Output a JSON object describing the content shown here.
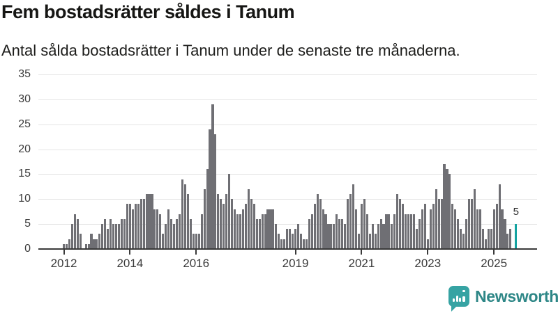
{
  "header": {
    "title": "Fem bostadsrätter såldes i Tanum",
    "subtitle": "Antal sålda bostadsrätter i Tanum under de senaste tre månaderna."
  },
  "chart_data": {
    "type": "bar",
    "title": "Fem bostadsrätter såldes i Tanum",
    "subtitle": "Antal sålda bostadsrätter i Tanum under de senaste tre månaderna.",
    "x_unit": "month",
    "x_start_year": 2012,
    "x_tick_labels": [
      "2012",
      "2014",
      "2016",
      "2019",
      "2021",
      "2023",
      "2025"
    ],
    "x_tick_month_index": [
      0,
      24,
      48,
      84,
      108,
      132,
      156
    ],
    "y_ticks": [
      0,
      5,
      10,
      15,
      20,
      25,
      30,
      35
    ],
    "ylim": [
      0,
      35
    ],
    "grid": true,
    "legend": "none",
    "values": [
      1,
      1,
      2,
      5,
      7,
      6,
      3,
      0,
      1,
      1,
      3,
      2,
      2,
      3,
      5,
      6,
      4,
      6,
      5,
      5,
      5,
      6,
      6,
      9,
      9,
      8,
      9,
      9,
      10,
      10,
      11,
      11,
      11,
      8,
      8,
      7,
      3,
      5,
      8,
      6,
      5,
      6,
      7,
      14,
      13,
      11,
      6,
      3,
      3,
      3,
      7,
      12,
      16,
      24,
      29,
      23,
      11,
      10,
      9,
      11,
      15,
      10,
      8,
      7,
      7,
      8,
      9,
      12,
      10,
      9,
      6,
      6,
      7,
      7,
      8,
      8,
      8,
      5,
      3,
      2,
      2,
      4,
      4,
      3,
      4,
      5,
      3,
      2,
      2,
      6,
      7,
      9,
      11,
      10,
      8,
      7,
      5,
      5,
      5,
      7,
      6,
      6,
      5,
      10,
      11,
      13,
      8,
      3,
      9,
      10,
      7,
      3,
      5,
      3,
      5,
      6,
      5,
      7,
      7,
      5,
      7,
      11,
      10,
      9,
      7,
      7,
      7,
      7,
      4,
      6,
      8,
      9,
      2,
      8,
      9,
      12,
      10,
      10,
      17,
      16,
      15,
      9,
      8,
      6,
      4,
      3,
      6,
      10,
      10,
      12,
      8,
      8,
      4,
      2,
      4,
      4,
      8,
      9,
      13,
      8,
      6,
      3,
      4,
      0,
      5
    ],
    "highlight_last_bar": true,
    "last_bar_value_label": "5",
    "bar_color": "#6f6f74",
    "highlight_color": "#14a3a1",
    "gridline_color": "#e4e4e4",
    "axis_color": "#3a3a3a"
  },
  "annotation": {
    "last_bar_label": "5"
  },
  "footer": {
    "brand": "Newsworthy",
    "logo_icon": "newsworthy-speech-bubble-bar-chart-icon",
    "icon_color": "#36a3a3",
    "text_color": "#2e8787"
  }
}
